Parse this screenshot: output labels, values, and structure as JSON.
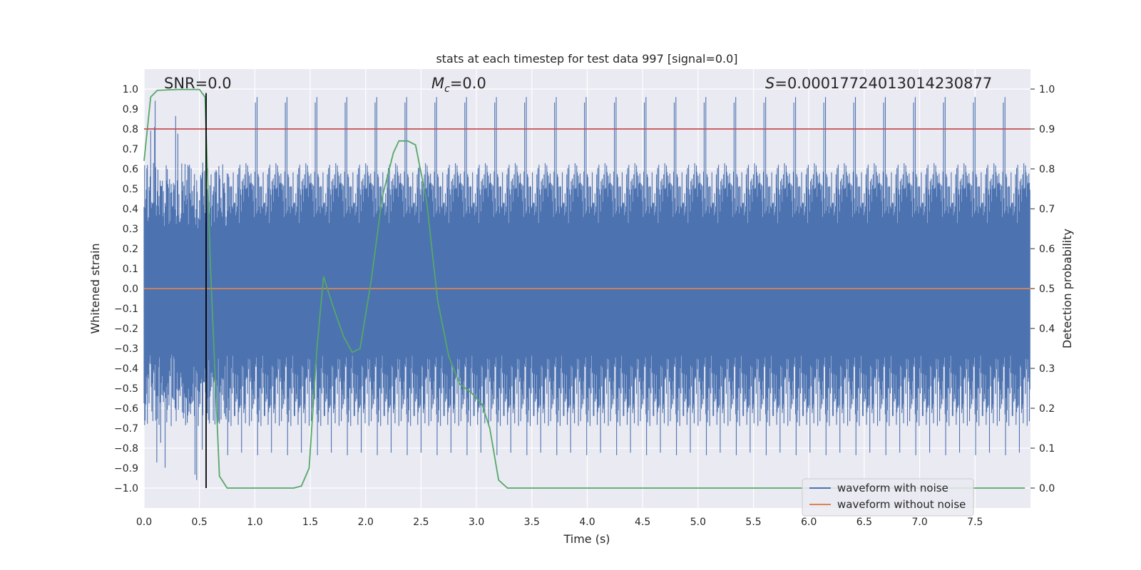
{
  "chart_data": {
    "type": "line",
    "title": "stats at each timestep for test data 997 [signal=0.0]",
    "xlabel": "Time (s)",
    "ylabel": "Whitened strain",
    "ylabel_right": "Detection probability",
    "xlim": [
      0.0,
      8.0
    ],
    "ylim": [
      -1.1,
      1.1
    ],
    "ylim_right": [
      -0.05,
      1.05
    ],
    "grid": true,
    "xticks": [
      "0.0",
      "0.5",
      "1.0",
      "1.5",
      "2.0",
      "2.5",
      "3.0",
      "3.5",
      "4.0",
      "4.5",
      "5.0",
      "5.5",
      "6.0",
      "6.5",
      "7.0",
      "7.5"
    ],
    "yticks": [
      "1.0",
      "0.9",
      "0.8",
      "0.7",
      "0.6",
      "0.5",
      "0.4",
      "0.3",
      "0.2",
      "0.1",
      "0.0",
      "−0.1",
      "−0.2",
      "−0.3",
      "−0.4",
      "−0.5",
      "−0.6",
      "−0.7",
      "−0.8",
      "−0.9",
      "−1.0"
    ],
    "yticks_right": [
      "1.0",
      "0.9",
      "0.8",
      "0.7",
      "0.6",
      "0.5",
      "0.4",
      "0.3",
      "0.2",
      "0.1",
      "0.0"
    ],
    "annotations": {
      "snr": "SNR=0.0",
      "mc_symbol": "M",
      "mc_sub": "c",
      "mc_value": "=0.0",
      "s_symbol": "S",
      "s_value": "=0.00017724013014230877"
    },
    "legend": {
      "placement": "lower-right",
      "entries": [
        {
          "label": "waveform with noise",
          "color": "#4c72b0"
        },
        {
          "label": "waveform without noise",
          "color": "#dd8452"
        }
      ]
    },
    "series": [
      {
        "name": "waveform with noise",
        "color": "#4c72b0",
        "axis": "left",
        "description_kind": "noise",
        "envelope_upper_typical": 0.55,
        "envelope_lower_typical": -0.6,
        "spike_max": 0.97,
        "spike_min": -0.97
      },
      {
        "name": "waveform without noise",
        "color": "#dd8452",
        "axis": "left",
        "x": [
          0.0,
          8.0
        ],
        "y": [
          0.0,
          0.0
        ]
      },
      {
        "color": "#55a868",
        "axis": "right",
        "x": [
          0.0,
          0.06,
          0.12,
          0.3,
          0.5,
          0.55,
          0.6,
          0.68,
          0.75,
          1.0,
          1.2,
          1.35,
          1.42,
          1.49,
          1.56,
          1.62,
          1.7,
          1.8,
          1.88,
          1.95,
          2.05,
          2.15,
          2.25,
          2.3,
          2.38,
          2.45,
          2.55,
          2.65,
          2.75,
          2.85,
          2.95,
          3.05,
          3.12,
          3.2,
          3.28,
          4.0,
          5.0,
          6.0,
          7.0,
          7.95
        ],
        "y": [
          0.82,
          0.98,
          0.997,
          0.999,
          0.999,
          0.98,
          0.55,
          0.03,
          0.0,
          0.0,
          0.0,
          0.0,
          0.005,
          0.05,
          0.35,
          0.53,
          0.46,
          0.38,
          0.34,
          0.35,
          0.52,
          0.73,
          0.84,
          0.87,
          0.87,
          0.86,
          0.72,
          0.47,
          0.33,
          0.26,
          0.24,
          0.21,
          0.15,
          0.02,
          0.0,
          0.0,
          0.0,
          0.0,
          0.0,
          0.0
        ]
      },
      {
        "color": "#c44e52",
        "axis": "right",
        "x": [
          0.0,
          8.0
        ],
        "y": [
          0.9,
          0.9
        ]
      },
      {
        "color": "#000000",
        "axis": "left",
        "x": [
          0.56,
          0.56
        ],
        "y": [
          -1.0,
          0.98
        ]
      }
    ]
  }
}
